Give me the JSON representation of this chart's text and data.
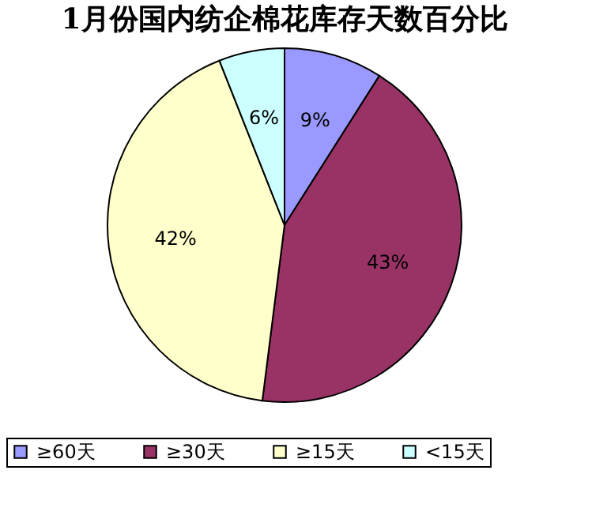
{
  "chart_data": {
    "type": "pie",
    "title": "1月份国内纺企棉花库存天数百分比",
    "categories": [
      "≥60天",
      "≥30天",
      "≥15天",
      "<15天"
    ],
    "values": [
      9,
      43,
      42,
      6
    ],
    "value_labels": [
      "9%",
      "43%",
      "42%",
      "6%"
    ],
    "colors": [
      "#9999ff",
      "#993366",
      "#ffffcc",
      "#ccffff"
    ],
    "legend": "bottom"
  }
}
